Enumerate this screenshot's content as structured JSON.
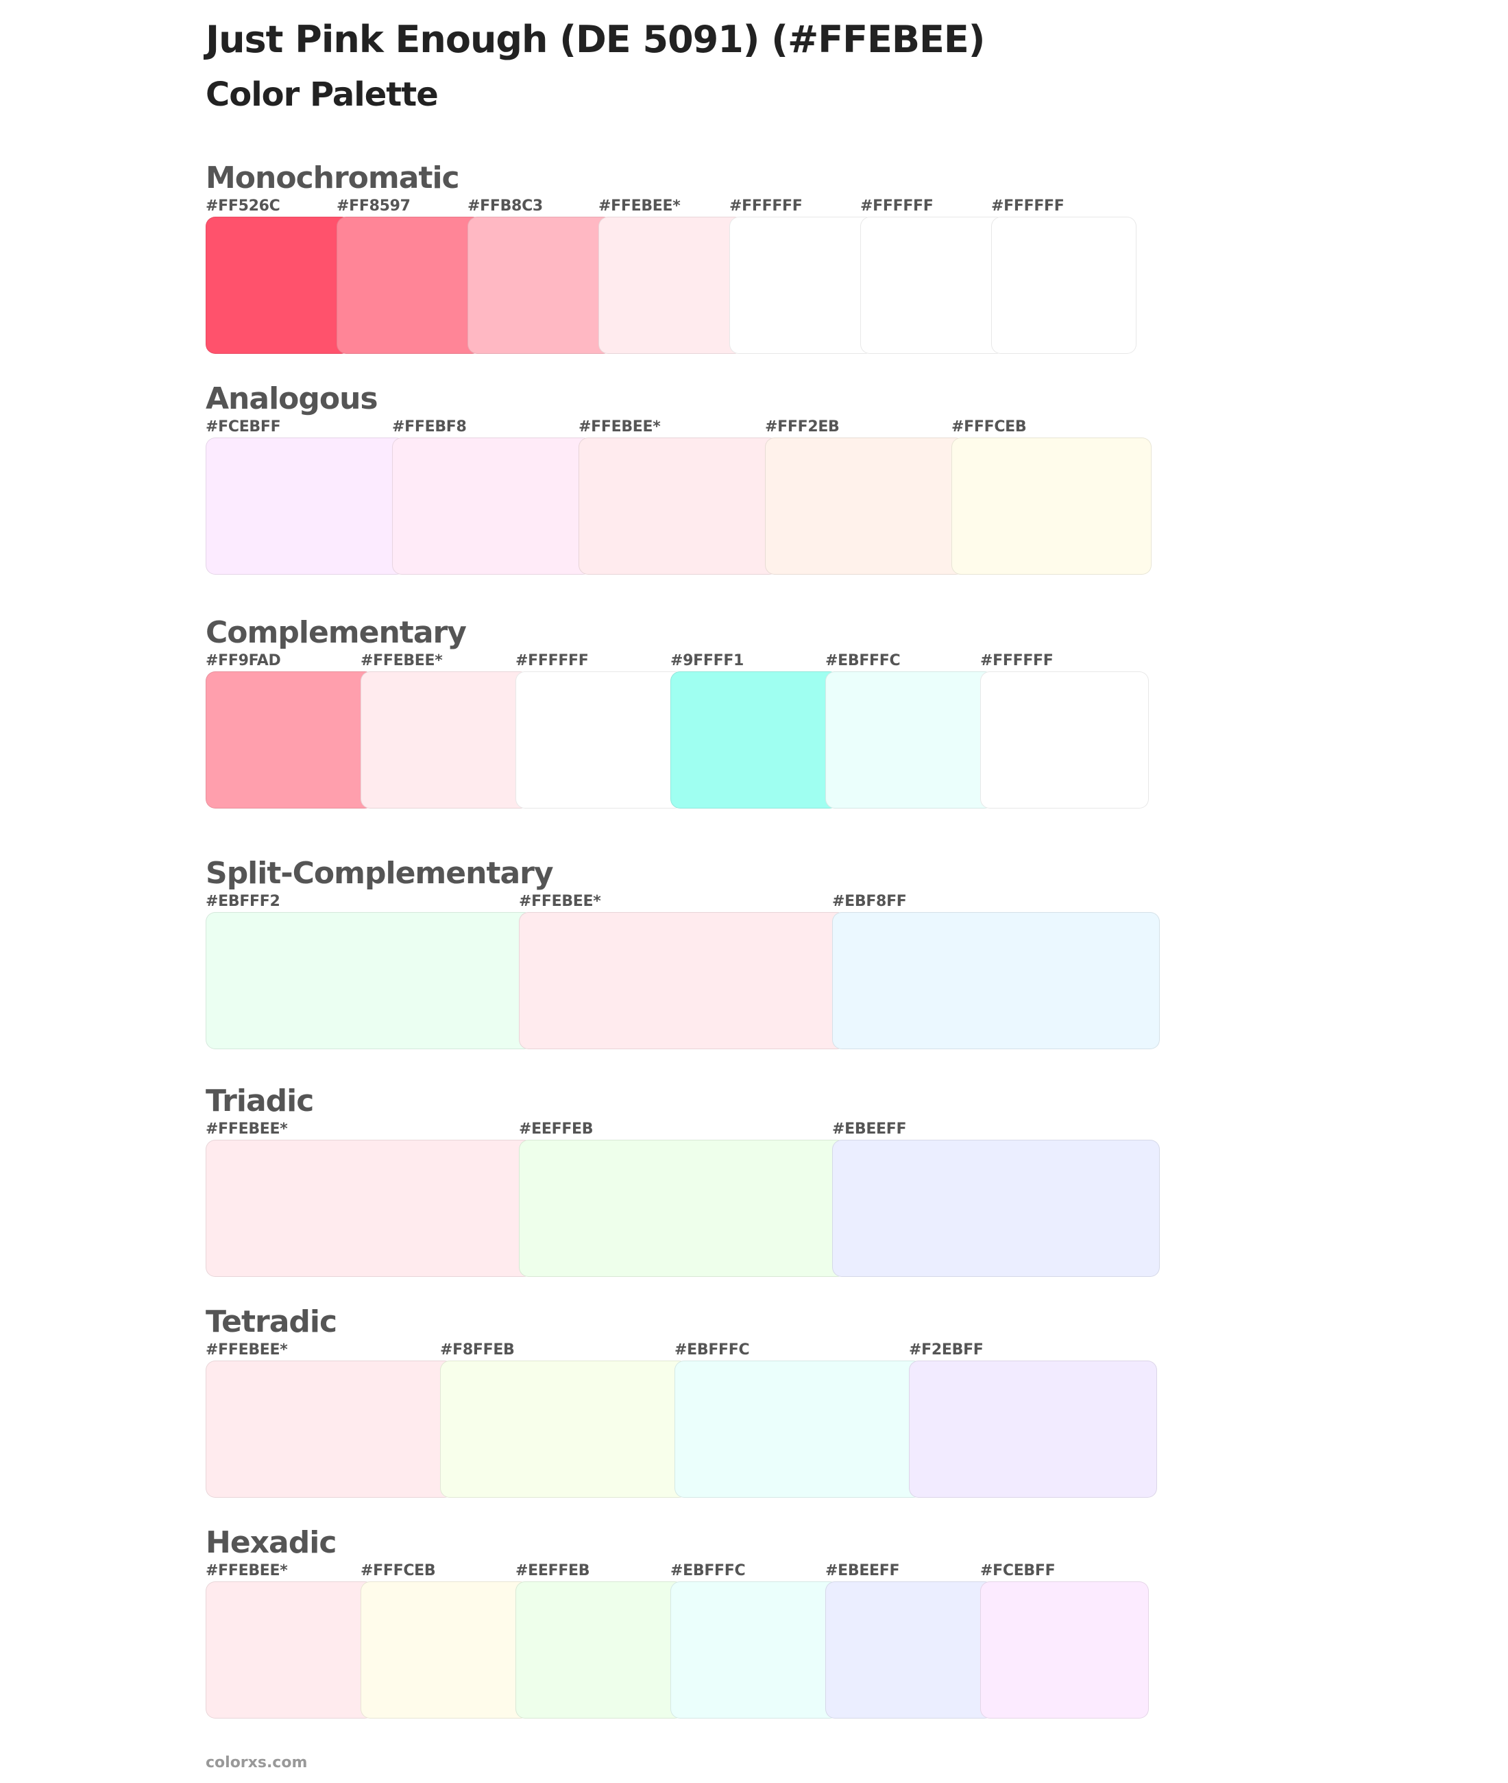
{
  "page": {
    "title": "Just Pink Enough (DE 5091) (#FFEBEE)",
    "subtitle": "Color Palette"
  },
  "sections": [
    {
      "title": "Monochromatic",
      "swatches": [
        {
          "label": "#FF526C",
          "color": "#FF526C"
        },
        {
          "label": "#FF8597",
          "color": "#FF8597"
        },
        {
          "label": "#FFB8C3",
          "color": "#FFB8C3"
        },
        {
          "label": "#FFEBEE*",
          "color": "#FFEBEE"
        },
        {
          "label": "#FFFFFF",
          "color": "#FFFFFF"
        },
        {
          "label": "#FFFFFF",
          "color": "#FFFFFF"
        },
        {
          "label": "#FFFFFF",
          "color": "#FFFFFF"
        }
      ]
    },
    {
      "title": "Analogous",
      "swatches": [
        {
          "label": "#FCEBFF",
          "color": "#FCEBFF"
        },
        {
          "label": "#FFEBF8",
          "color": "#FFEBF8"
        },
        {
          "label": "#FFEBEE*",
          "color": "#FFEBEE"
        },
        {
          "label": "#FFF2EB",
          "color": "#FFF2EB"
        },
        {
          "label": "#FFFCEB",
          "color": "#FFFCEB"
        }
      ]
    },
    {
      "title": "Complementary",
      "swatches": [
        {
          "label": "#FF9FAD",
          "color": "#FF9FAD"
        },
        {
          "label": "#FFEBEE*",
          "color": "#FFEBEE"
        },
        {
          "label": "#FFFFFF",
          "color": "#FFFFFF"
        },
        {
          "label": "#9FFFF1",
          "color": "#9FFFF1"
        },
        {
          "label": "#EBFFFC",
          "color": "#EBFFFC"
        },
        {
          "label": "#FFFFFF",
          "color": "#FFFFFF"
        }
      ]
    },
    {
      "title": "Split-Complementary",
      "swatches": [
        {
          "label": "#EBFFF2",
          "color": "#EBFFF2"
        },
        {
          "label": "#FFEBEE*",
          "color": "#FFEBEE"
        },
        {
          "label": "#EBF8FF",
          "color": "#EBF8FF"
        }
      ]
    },
    {
      "title": "Triadic",
      "swatches": [
        {
          "label": "#FFEBEE*",
          "color": "#FFEBEE"
        },
        {
          "label": "#EEFFEB",
          "color": "#EEFFEB"
        },
        {
          "label": "#EBEEFF",
          "color": "#EBEEFF"
        }
      ]
    },
    {
      "title": "Tetradic",
      "swatches": [
        {
          "label": "#FFEBEE*",
          "color": "#FFEBEE"
        },
        {
          "label": "#F8FFEB",
          "color": "#F8FFEB"
        },
        {
          "label": "#EBFFFC",
          "color": "#EBFFFC"
        },
        {
          "label": "#F2EBFF",
          "color": "#F2EBFF"
        }
      ]
    },
    {
      "title": "Hexadic",
      "swatches": [
        {
          "label": "#FFEBEE*",
          "color": "#FFEBEE"
        },
        {
          "label": "#FFFCEB",
          "color": "#FFFCEB"
        },
        {
          "label": "#EEFFEB",
          "color": "#EEFFEB"
        },
        {
          "label": "#EBFFFC",
          "color": "#EBFFFC"
        },
        {
          "label": "#EBEEFF",
          "color": "#EBEEFF"
        },
        {
          "label": "#FCEBFF",
          "color": "#FCEBFF"
        }
      ]
    }
  ],
  "footer": {
    "site": "colorxs.com"
  }
}
